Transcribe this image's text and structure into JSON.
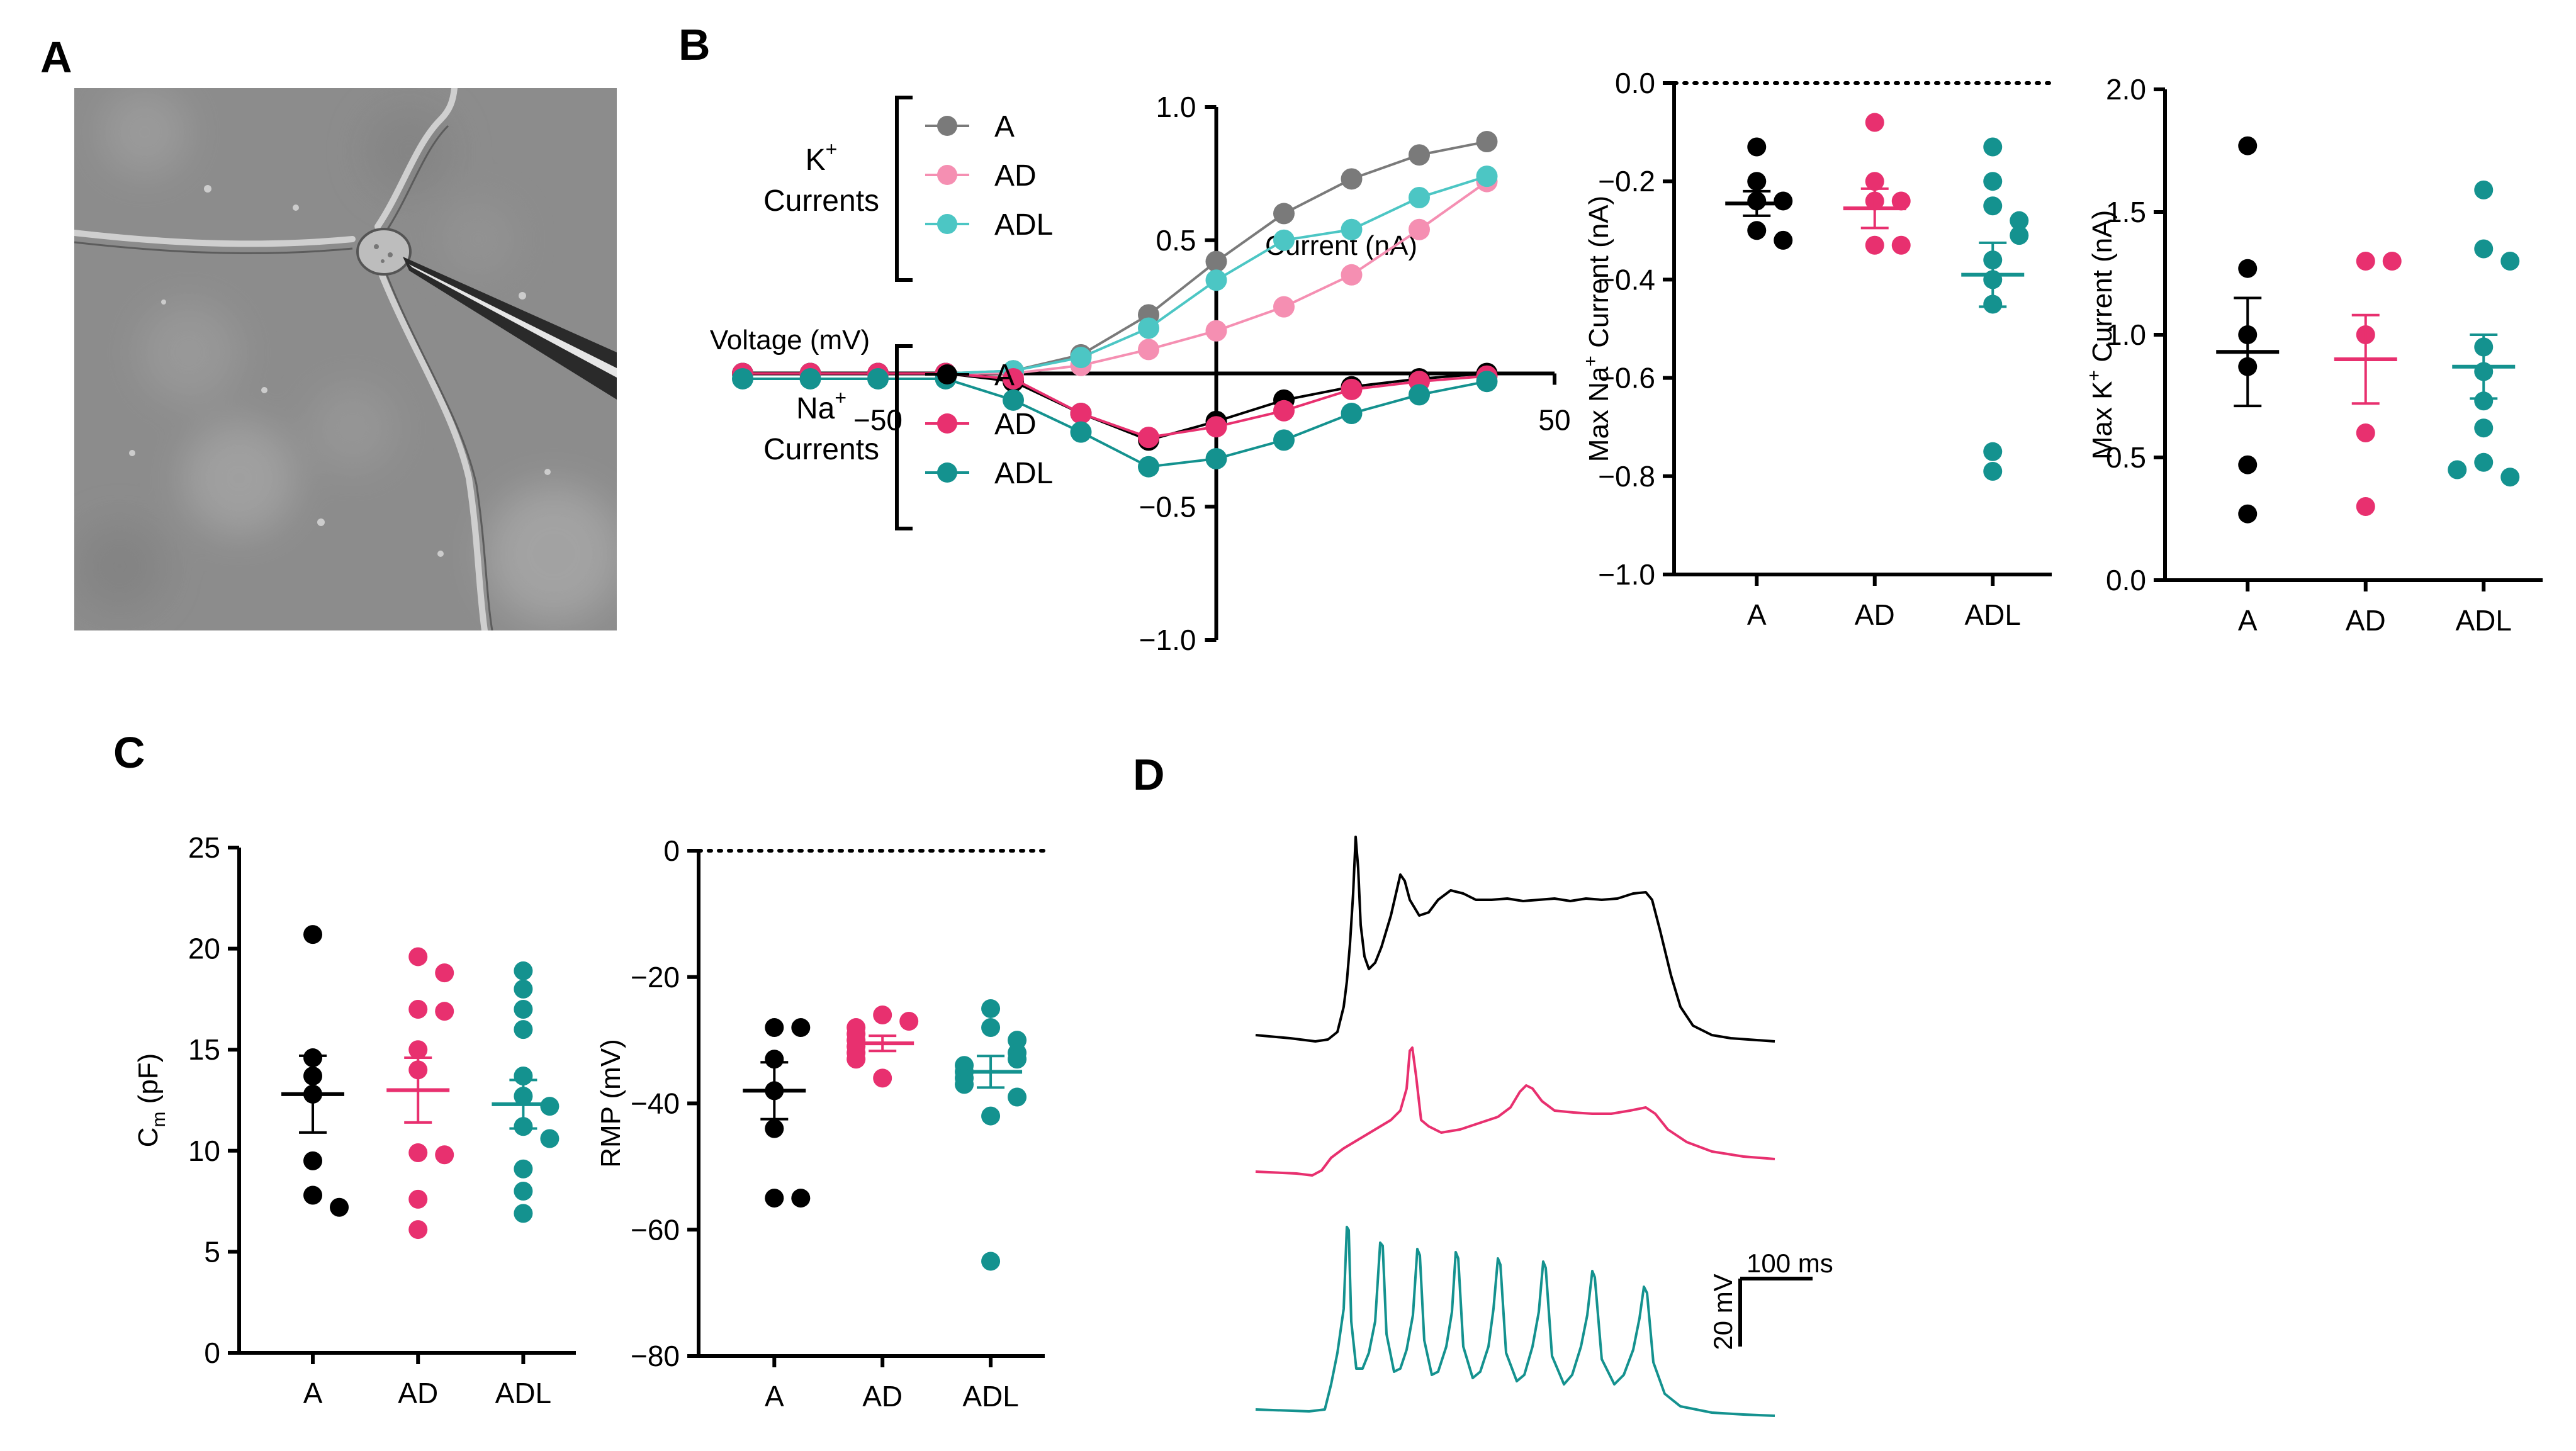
{
  "colors": {
    "A": "#000000",
    "AD": "#e8306f",
    "ADL": "#14928f",
    "K_A": "#7a7a7a",
    "K_AD": "#f58fb2",
    "K_ADL": "#4cc6c4",
    "grid": "#000000"
  },
  "panels": {
    "A": "A",
    "B": "B",
    "C": "C",
    "D": "D"
  },
  "chart_data": [
    {
      "id": "micrograph",
      "type": "image",
      "panel": "A"
    },
    {
      "id": "iv",
      "type": "line",
      "panel": "B",
      "xlabel": "Voltage (mV)",
      "ylabel": "Current (nA)",
      "xlim": [
        -70,
        50
      ],
      "ylim": [
        -1.0,
        1.0
      ],
      "xticks": [
        -50,
        50
      ],
      "xtick_labels": [
        "−50",
        "50"
      ],
      "yticks": [
        -1.0,
        -0.5,
        0.5,
        1.0
      ],
      "ytick_labels": [
        "−1.0",
        "−0.5",
        "0.5",
        "1.0"
      ],
      "x": [
        -70,
        -60,
        -50,
        -40,
        -30,
        -20,
        -10,
        0,
        10,
        20,
        30,
        40
      ],
      "groups": [
        {
          "label_main": "K",
          "label_sup": "+",
          "label_sub": "Currents",
          "series": [
            {
              "name": "A",
              "color": "#7a7a7a",
              "values": [
                0.0,
                0.0,
                0.0,
                0.0,
                0.01,
                0.07,
                0.22,
                0.42,
                0.6,
                0.73,
                0.82,
                0.87
              ]
            },
            {
              "name": "AD",
              "color": "#f58fb2",
              "values": [
                0.0,
                0.0,
                0.0,
                0.0,
                0.0,
                0.03,
                0.09,
                0.16,
                0.25,
                0.37,
                0.54,
                0.72
              ]
            },
            {
              "name": "ADL",
              "color": "#4cc6c4",
              "values": [
                0.0,
                0.0,
                0.0,
                0.0,
                0.01,
                0.06,
                0.17,
                0.35,
                0.5,
                0.54,
                0.66,
                0.74
              ]
            }
          ]
        },
        {
          "label_main": "Na",
          "label_sup": "+",
          "label_sub": "Currents",
          "series": [
            {
              "name": "A",
              "color": "#000000",
              "values": [
                0.0,
                0.0,
                0.0,
                0.0,
                -0.03,
                -0.15,
                -0.25,
                -0.18,
                -0.1,
                -0.05,
                -0.02,
                0.0
              ]
            },
            {
              "name": "AD",
              "color": "#e8306f",
              "values": [
                0.0,
                0.0,
                0.0,
                0.0,
                -0.02,
                -0.15,
                -0.24,
                -0.2,
                -0.14,
                -0.06,
                -0.03,
                -0.01
              ]
            },
            {
              "name": "ADL",
              "color": "#14928f",
              "values": [
                -0.02,
                -0.02,
                -0.02,
                -0.02,
                -0.1,
                -0.22,
                -0.35,
                -0.32,
                -0.25,
                -0.15,
                -0.08,
                -0.03
              ]
            }
          ]
        }
      ]
    },
    {
      "id": "maxna",
      "type": "scatter",
      "panel": "B",
      "ylabel_main": "Max Na",
      "ylabel_sup": "+",
      "ylabel_rest": " Current (nA)",
      "ylim": [
        -1.0,
        0.0
      ],
      "yticks": [
        0.0,
        -0.2,
        -0.4,
        -0.6,
        -0.8,
        -1.0
      ],
      "ytick_labels": [
        "0.0",
        "−0.2",
        "−0.4",
        "−0.6",
        "−0.8",
        "−1.0"
      ],
      "zero_line": "dotted",
      "categories": [
        "A",
        "AD",
        "ADL"
      ],
      "groups": [
        {
          "name": "A",
          "color": "#000000",
          "points": [
            -0.13,
            -0.2,
            -0.24,
            -0.24,
            -0.3,
            -0.32
          ],
          "mean": -0.245,
          "sem": 0.025
        },
        {
          "name": "AD",
          "color": "#e8306f",
          "points": [
            -0.08,
            -0.2,
            -0.24,
            -0.24,
            -0.33,
            -0.33
          ],
          "mean": -0.255,
          "sem": 0.04
        },
        {
          "name": "ADL",
          "color": "#14928f",
          "points": [
            -0.13,
            -0.2,
            -0.25,
            -0.28,
            -0.31,
            -0.36,
            -0.4,
            -0.45,
            -0.75,
            -0.79
          ],
          "mean": -0.39,
          "sem": 0.065
        }
      ]
    },
    {
      "id": "maxk",
      "type": "scatter",
      "panel": "B",
      "ylabel_main": "Max K",
      "ylabel_sup": "+",
      "ylabel_rest": " Current (nA)",
      "ylim": [
        0.0,
        2.0
      ],
      "yticks": [
        0.0,
        0.5,
        1.0,
        1.5,
        2.0
      ],
      "ytick_labels": [
        "0.0",
        "0.5",
        "1.0",
        "1.5",
        "2.0"
      ],
      "categories": [
        "A",
        "AD",
        "ADL"
      ],
      "groups": [
        {
          "name": "A",
          "color": "#000000",
          "points": [
            1.77,
            1.27,
            1.0,
            0.87,
            0.47,
            0.27
          ],
          "mean": 0.93,
          "sem": 0.22
        },
        {
          "name": "AD",
          "color": "#e8306f",
          "points": [
            1.3,
            1.3,
            1.0,
            0.6,
            0.3
          ],
          "mean": 0.9,
          "sem": 0.18
        },
        {
          "name": "ADL",
          "color": "#14928f",
          "points": [
            1.59,
            1.35,
            1.3,
            0.95,
            0.85,
            0.73,
            0.62,
            0.48,
            0.42,
            0.45
          ],
          "mean": 0.87,
          "sem": 0.13
        }
      ]
    },
    {
      "id": "cm",
      "type": "scatter",
      "panel": "C",
      "ylabel_main": "C",
      "ylabel_sub": "m",
      "ylabel_rest": " (pF)",
      "ylim": [
        0,
        25
      ],
      "yticks": [
        0,
        5,
        10,
        15,
        20,
        25
      ],
      "ytick_labels": [
        "0",
        "5",
        "10",
        "15",
        "20",
        "25"
      ],
      "categories": [
        "A",
        "AD",
        "ADL"
      ],
      "groups": [
        {
          "name": "A",
          "color": "#000000",
          "points": [
            20.7,
            14.6,
            13.7,
            12.8,
            9.5,
            7.8,
            7.2
          ],
          "mean": 12.8,
          "sem": 1.9
        },
        {
          "name": "AD",
          "color": "#e8306f",
          "points": [
            19.6,
            18.8,
            17.0,
            16.9,
            15.0,
            14.0,
            9.9,
            9.8,
            7.6,
            6.1
          ],
          "mean": 13.0,
          "sem": 1.6
        },
        {
          "name": "ADL",
          "color": "#14928f",
          "points": [
            18.9,
            18.0,
            17.0,
            16.0,
            13.7,
            12.7,
            12.2,
            11.2,
            10.6,
            9.1,
            8.0,
            6.9
          ],
          "mean": 12.3,
          "sem": 1.2
        }
      ]
    },
    {
      "id": "rmp",
      "type": "scatter",
      "panel": "C",
      "ylabel_main": "RMP (mV)",
      "ylim": [
        -80,
        0
      ],
      "yticks": [
        0,
        -20,
        -40,
        -60,
        -80
      ],
      "ytick_labels": [
        "0",
        "−20",
        "−40",
        "−60",
        "−80"
      ],
      "zero_line": "dotted",
      "categories": [
        "A",
        "AD",
        "ADL"
      ],
      "groups": [
        {
          "name": "A",
          "color": "#000000",
          "points": [
            -28.0,
            -28.0,
            -33.0,
            -38.0,
            -44.0,
            -55.0,
            -55.0
          ],
          "mean": -38.0,
          "sem": 4.5
        },
        {
          "name": "AD",
          "color": "#e8306f",
          "points": [
            -26.0,
            -27.0,
            -28.0,
            -29.0,
            -30.0,
            -31.0,
            -32.0,
            -33.0,
            -36.0
          ],
          "mean": -30.5,
          "sem": 1.2
        },
        {
          "name": "ADL",
          "color": "#14928f",
          "points": [
            -25.0,
            -28.0,
            -30.0,
            -32.0,
            -33.0,
            -34.0,
            -35.0,
            -36.0,
            -37.0,
            -39.0,
            -42.0,
            -65.0
          ],
          "mean": -35.0,
          "sem": 2.5
        }
      ]
    },
    {
      "id": "traces",
      "type": "line",
      "panel": "D",
      "scalebar": {
        "time_label": "100 ms",
        "voltage_label": "20 mV",
        "time_value": 100,
        "voltage_value": 20
      },
      "series": [
        {
          "name": "A",
          "color": "#000000"
        },
        {
          "name": "AD",
          "color": "#e8306f"
        },
        {
          "name": "ADL",
          "color": "#14928f"
        }
      ]
    }
  ]
}
